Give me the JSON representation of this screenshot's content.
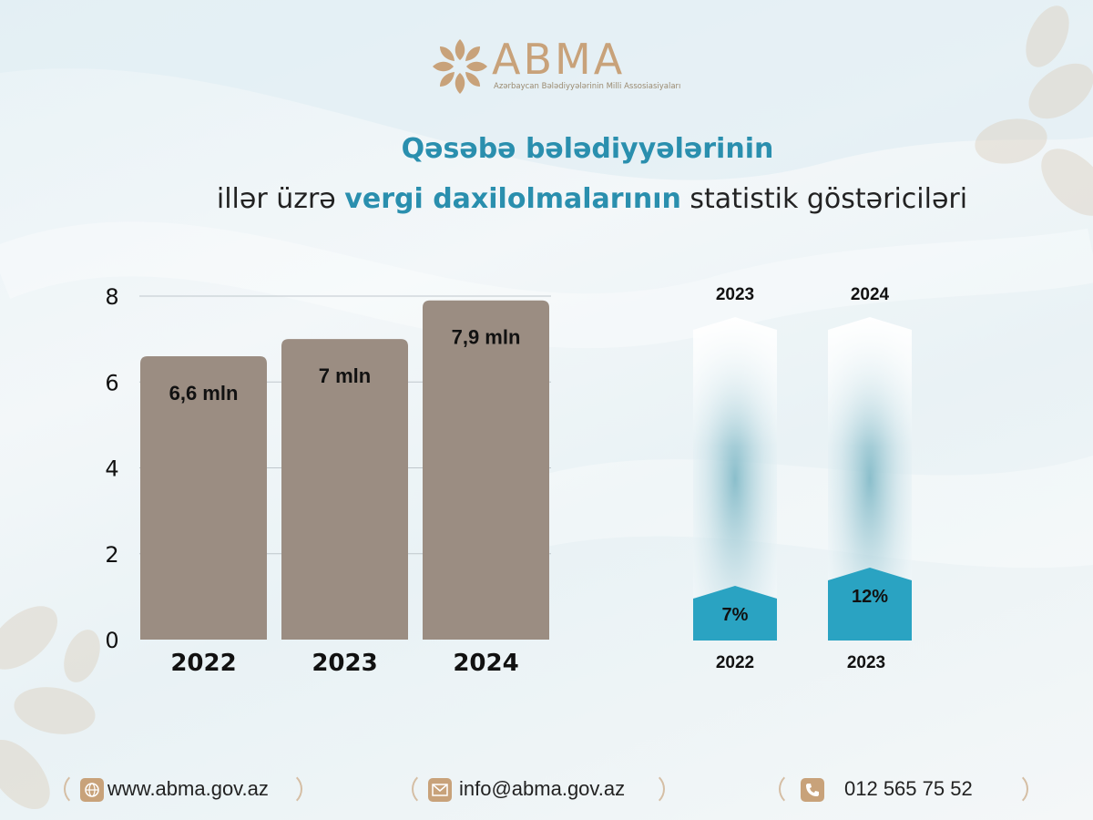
{
  "logo": {
    "text": "ABMA",
    "subtitle": "Azərbaycan Bələdiyyələrinin Milli Assosiasiyaları"
  },
  "title": {
    "line1": "Qəsəbə bələdiyyələrinin",
    "line2_pre": "illər üzrə ",
    "line2_highlight": "vergi daxilolmalarının",
    "line2_post": " statistik göstəriciləri"
  },
  "colors": {
    "bar": "#9b8d82",
    "teal": "#2aa3c2",
    "accent": "#2a8fae",
    "gold": "#c8a27a"
  },
  "chart_data": [
    {
      "type": "bar",
      "categories": [
        "2022",
        "2023",
        "2024"
      ],
      "values": [
        6.6,
        7.0,
        7.9
      ],
      "data_labels": [
        "6,6 mln",
        "7 mln",
        "7,9 mln"
      ],
      "yticks": [
        "0",
        "2",
        "4",
        "6",
        "8"
      ],
      "ylim": [
        0,
        8
      ],
      "grid": true
    },
    {
      "type": "bar",
      "description_labels_top": [
        "2023",
        "2024"
      ],
      "categories": [
        "2022",
        "2023"
      ],
      "values": [
        7,
        12
      ],
      "data_labels": [
        "7%",
        "12%"
      ],
      "unit": "%"
    }
  ],
  "footer": {
    "website": "www.abma.gov.az",
    "email": "info@abma.gov.az",
    "phone": "012 565 75 52",
    "website_icon": "globe-icon",
    "email_icon": "envelope-icon",
    "phone_icon": "phone-icon"
  }
}
